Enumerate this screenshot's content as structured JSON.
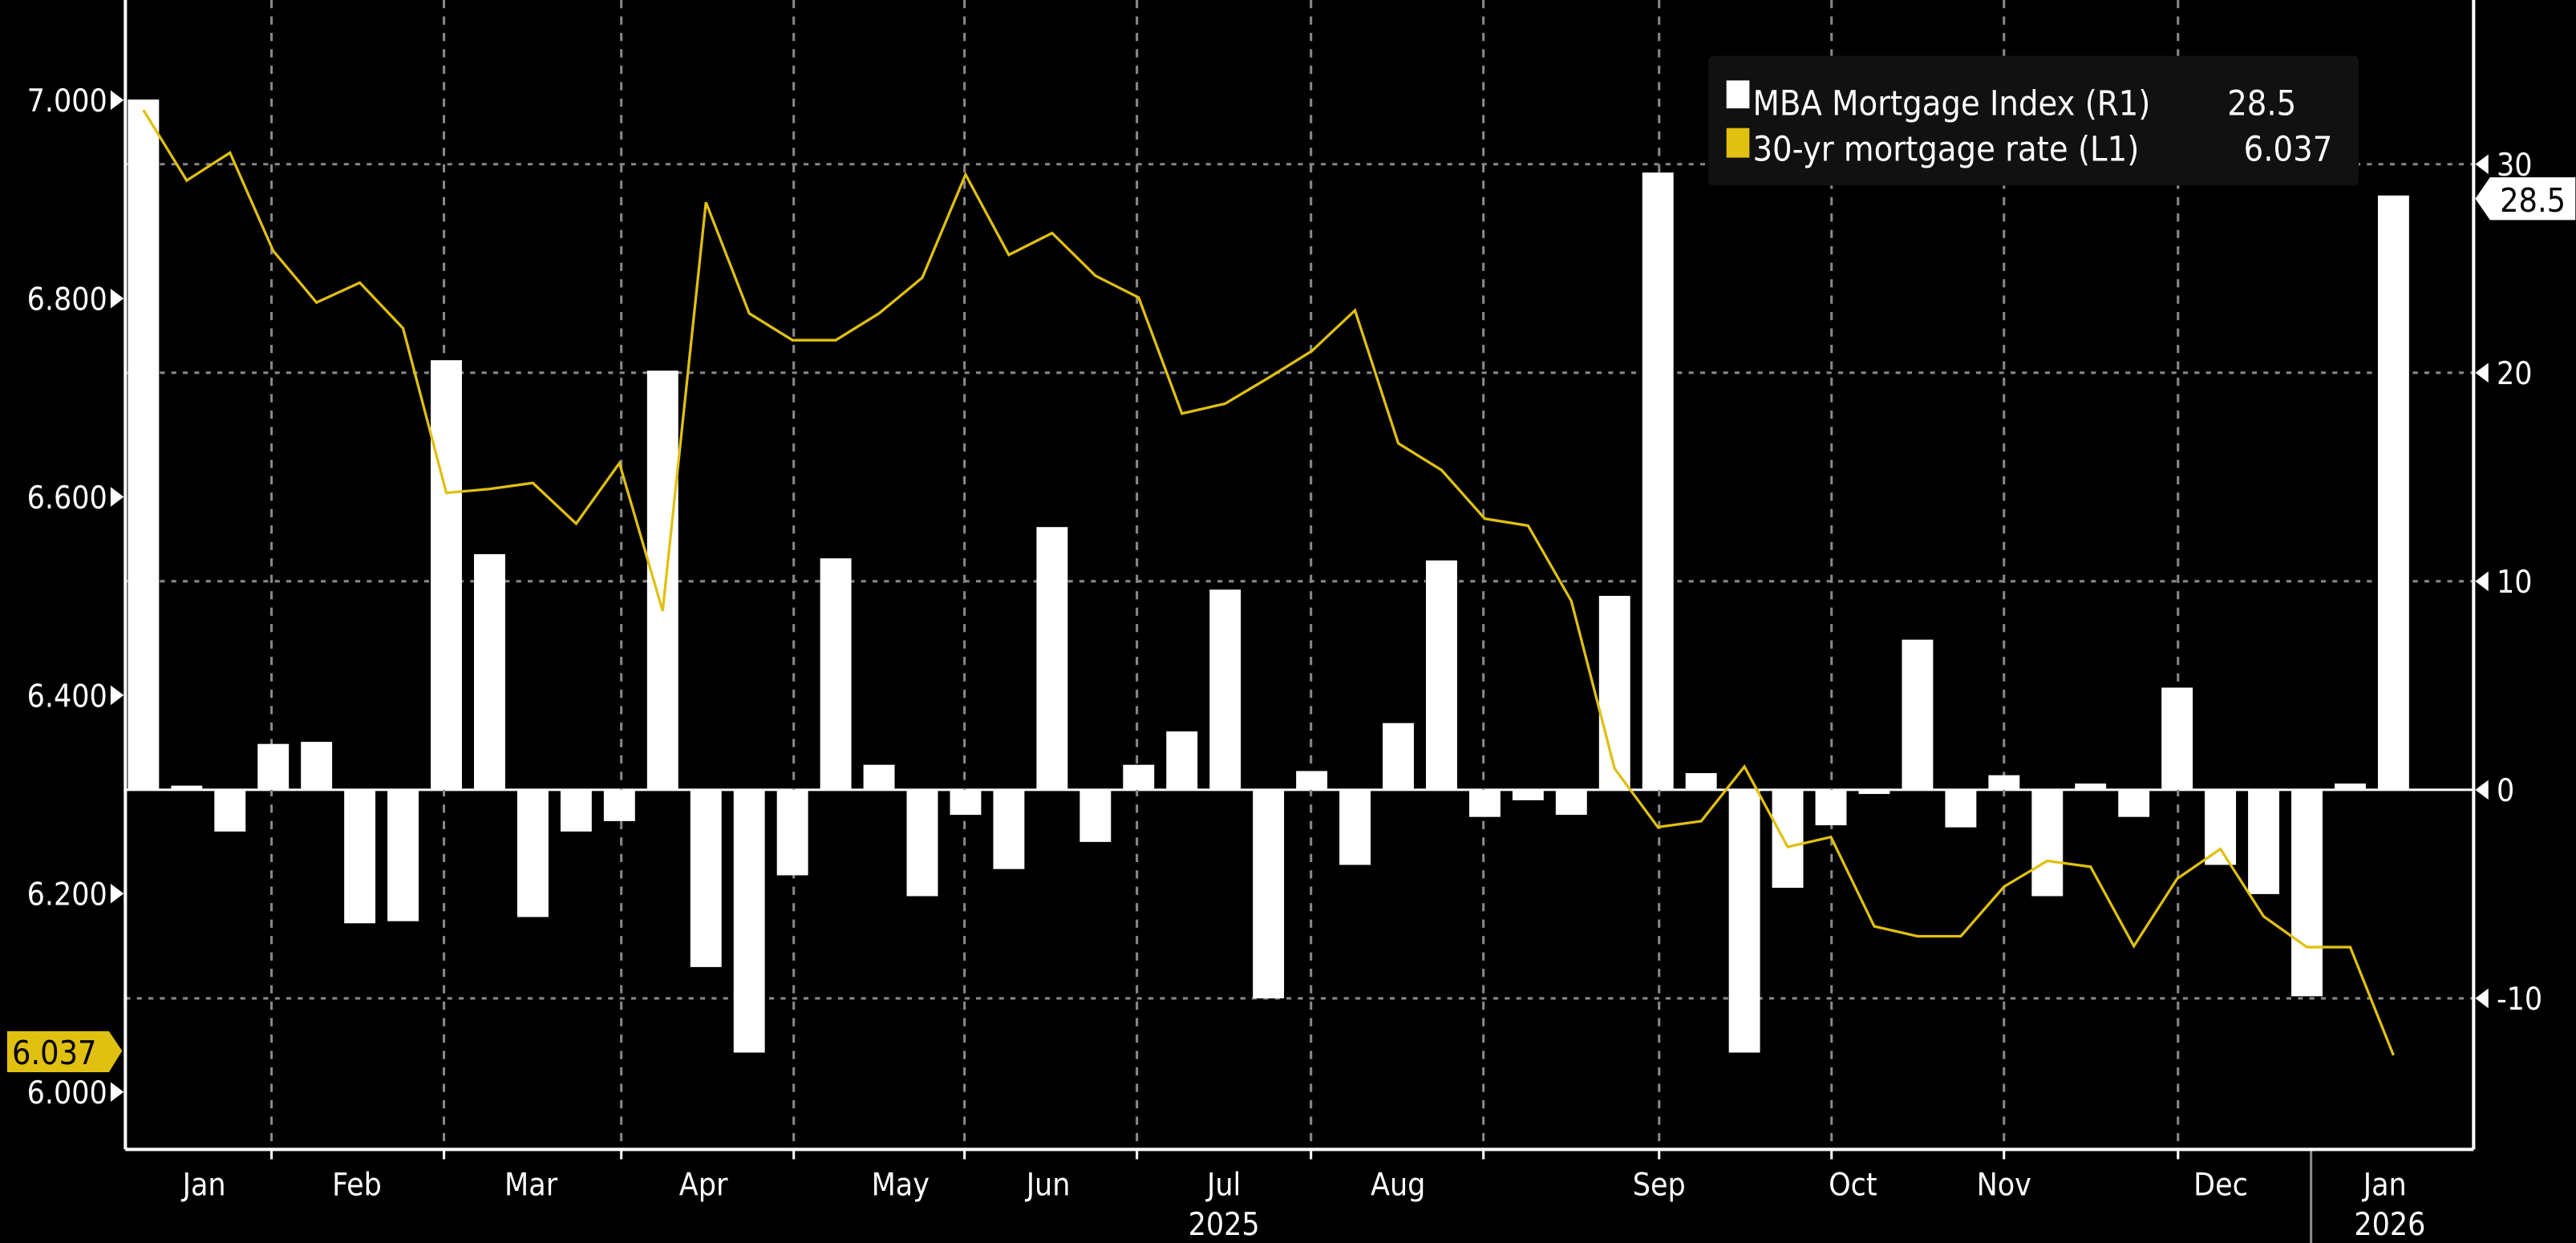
{
  "chart_data": {
    "type": "bar+line",
    "x_period": "weekly",
    "month_labels": [
      "Jan",
      "Feb",
      "Mar",
      "Apr",
      "May",
      "Jun",
      "Jul",
      "Aug",
      "Sep",
      "Oct",
      "Nov",
      "Dec",
      "Jan"
    ],
    "year_labels": [
      "2025",
      "2026"
    ],
    "left_axis": {
      "ticks": [
        "6.000",
        "6.200",
        "6.400",
        "6.600",
        "6.800",
        "7.000"
      ],
      "range": [
        5.97,
        7.1
      ]
    },
    "right_axis": {
      "ticks": [
        "-10",
        "0",
        "10",
        "20",
        "30"
      ],
      "range": [
        -16.5,
        37.9
      ]
    },
    "grid": true,
    "legend_placement": "top-right",
    "legend": [
      {
        "label": "MBA Mortgage Index (R1)",
        "value": "28.5",
        "color": "#ffffff"
      },
      {
        "label": "30-yr mortgage rate (L1)",
        "value": "6.037",
        "color": "#e0c010"
      }
    ],
    "last_value_tags": {
      "right": "28.5",
      "left": "6.037"
    },
    "series": [
      {
        "name": "MBA Mortgage Index (R1)",
        "type": "bar",
        "axis": "right",
        "color": "#ffffff",
        "values": [
          33.1,
          0.2,
          -2.0,
          2.2,
          2.3,
          -6.4,
          -6.3,
          20.6,
          11.3,
          -6.1,
          -2.0,
          -1.5,
          20.1,
          -8.5,
          -12.6,
          -4.1,
          11.1,
          1.2,
          -5.1,
          -1.2,
          -3.8,
          12.6,
          -2.5,
          1.2,
          2.8,
          9.6,
          -10.0,
          0.9,
          -3.6,
          3.2,
          11.0,
          -1.3,
          -0.5,
          -1.2,
          9.3,
          29.6,
          0.8,
          -12.6,
          -4.7,
          -1.7,
          -0.2,
          7.2,
          -1.8,
          0.7,
          -5.1,
          0.3,
          -1.3,
          4.9,
          -3.6,
          -5.0,
          -9.9,
          0.3,
          28.5
        ]
      },
      {
        "name": "30-yr mortgage rate (L1)",
        "type": "line",
        "axis": "left",
        "color": "#e0c010",
        "values": [
          6.99,
          6.919,
          6.947,
          6.848,
          6.796,
          6.816,
          6.77,
          6.604,
          6.608,
          6.614,
          6.573,
          6.634,
          6.485,
          6.897,
          6.785,
          6.758,
          6.758,
          6.785,
          6.821,
          6.925,
          6.844,
          6.866,
          6.823,
          6.801,
          6.684,
          6.694,
          6.72,
          6.747,
          6.788,
          6.654,
          6.627,
          6.578,
          6.571,
          6.495,
          6.326,
          6.267,
          6.273,
          6.328,
          6.247,
          6.257,
          6.167,
          6.157,
          6.157,
          6.207,
          6.233,
          6.227,
          6.147,
          6.215,
          6.245,
          6.177,
          6.146,
          6.146,
          6.037
        ]
      }
    ]
  }
}
